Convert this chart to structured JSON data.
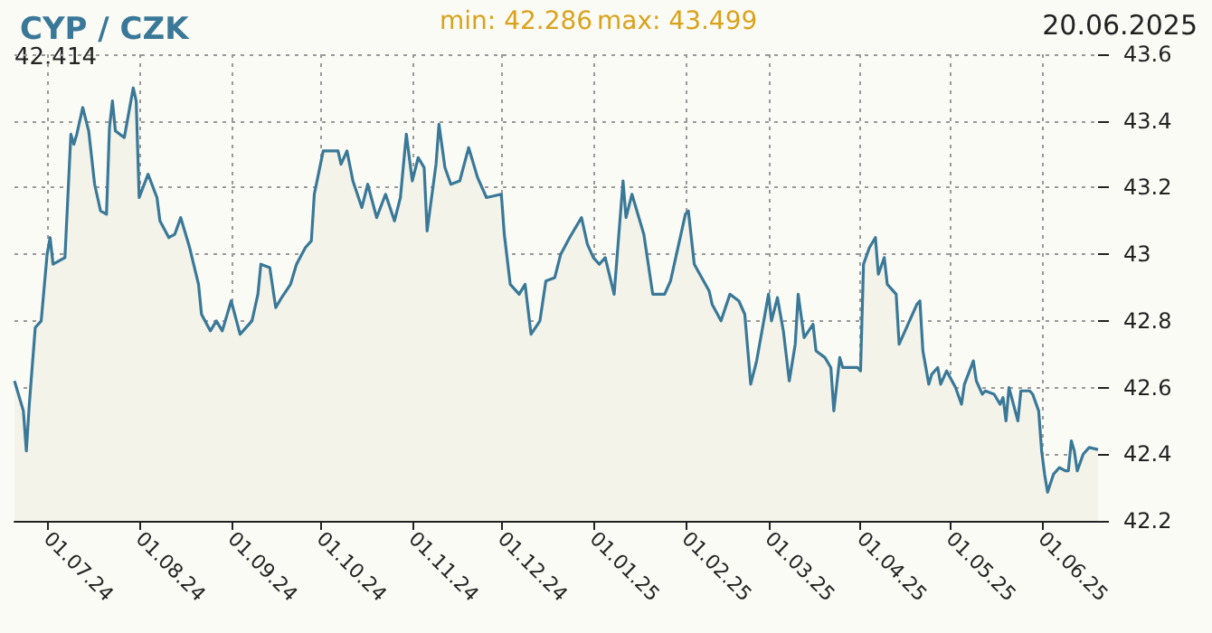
{
  "chart_data": {
    "type": "area",
    "title": "CYP / CZK",
    "annotations": [
      "min: 42.286",
      "max: 43.499",
      "20.06.2025",
      "42.414"
    ],
    "x": [
      "2024-06-20",
      "2024-06-23",
      "2024-06-24",
      "2024-06-25",
      "2024-06-27",
      "2024-06-29",
      "2024-07-01",
      "2024-07-02",
      "2024-07-03",
      "2024-07-07",
      "2024-07-09",
      "2024-07-10",
      "2024-07-11",
      "2024-07-13",
      "2024-07-15",
      "2024-07-17",
      "2024-07-19",
      "2024-07-21",
      "2024-07-22",
      "2024-07-23",
      "2024-07-24",
      "2024-07-27",
      "2024-07-30",
      "2024-07-31",
      "2024-08-01",
      "2024-08-04",
      "2024-08-07",
      "2024-08-08",
      "2024-08-11",
      "2024-08-13",
      "2024-08-15",
      "2024-08-18",
      "2024-08-21",
      "2024-08-22",
      "2024-08-25",
      "2024-08-27",
      "2024-08-29",
      "2024-09-01",
      "2024-09-04",
      "2024-09-08",
      "2024-09-10",
      "2024-09-11",
      "2024-09-14",
      "2024-09-16",
      "2024-09-18",
      "2024-09-21",
      "2024-09-23",
      "2024-09-26",
      "2024-09-28",
      "2024-09-29",
      "2024-10-02",
      "2024-10-07",
      "2024-10-08",
      "2024-10-10",
      "2024-10-12",
      "2024-10-15",
      "2024-10-17",
      "2024-10-20",
      "2024-10-23",
      "2024-10-26",
      "2024-10-28",
      "2024-10-30",
      "2024-11-01",
      "2024-11-03",
      "2024-11-05",
      "2024-11-06",
      "2024-11-09",
      "2024-11-10",
      "2024-11-12",
      "2024-11-14",
      "2024-11-17",
      "2024-11-20",
      "2024-11-23",
      "2024-11-26",
      "2024-12-01",
      "2024-12-02",
      "2024-12-04",
      "2024-12-07",
      "2024-12-09",
      "2024-12-11",
      "2024-12-14",
      "2024-12-16",
      "2024-12-19",
      "2024-12-21",
      "2024-12-24",
      "2024-12-28",
      "2024-12-30",
      "2025-01-01",
      "2025-01-03",
      "2025-01-05",
      "2025-01-08",
      "2025-01-11",
      "2025-01-12",
      "2025-01-14",
      "2025-01-18",
      "2025-01-21",
      "2025-01-25",
      "2025-01-27",
      "2025-02-01",
      "2025-02-02",
      "2025-02-04",
      "2025-02-09",
      "2025-02-10",
      "2025-02-13",
      "2025-02-16",
      "2025-02-19",
      "2025-02-21",
      "2025-02-23",
      "2025-02-25",
      "2025-02-27",
      "2025-03-01",
      "2025-03-02",
      "2025-03-04",
      "2025-03-06",
      "2025-03-08",
      "2025-03-10",
      "2025-03-11",
      "2025-03-13",
      "2025-03-16",
      "2025-03-17",
      "2025-03-20",
      "2025-03-22",
      "2025-03-23",
      "2025-03-25",
      "2025-03-26",
      "2025-03-31",
      "2025-04-01",
      "2025-04-02",
      "2025-04-04",
      "2025-04-06",
      "2025-04-07",
      "2025-04-09",
      "2025-04-10",
      "2025-04-13",
      "2025-04-14",
      "2025-04-20",
      "2025-04-21",
      "2025-04-22",
      "2025-04-24",
      "2025-04-25",
      "2025-04-27",
      "2025-04-28",
      "2025-04-30",
      "2025-05-03",
      "2025-05-05",
      "2025-05-06",
      "2025-05-09",
      "2025-05-10",
      "2025-05-12",
      "2025-05-13",
      "2025-05-16",
      "2025-05-18",
      "2025-05-19",
      "2025-05-20",
      "2025-05-21",
      "2025-05-24",
      "2025-05-25",
      "2025-05-28",
      "2025-05-29",
      "2025-05-31",
      "2025-06-01",
      "2025-06-02",
      "2025-06-03",
      "2025-06-05",
      "2025-06-07",
      "2025-06-09",
      "2025-06-10",
      "2025-06-11",
      "2025-06-12",
      "2025-06-13",
      "2025-06-15",
      "2025-06-17",
      "2025-06-20"
    ],
    "series": [
      {
        "color": "#3a7898",
        "values": [
          42.62,
          42.53,
          42.41,
          42.55,
          42.78,
          42.8,
          43.0,
          43.05,
          42.97,
          42.99,
          43.36,
          43.33,
          43.36,
          43.44,
          43.37,
          43.21,
          43.13,
          43.12,
          43.38,
          43.46,
          43.37,
          43.35,
          43.499,
          43.46,
          43.17,
          43.24,
          43.17,
          43.1,
          43.05,
          43.06,
          43.11,
          43.02,
          42.91,
          42.82,
          42.77,
          42.8,
          42.77,
          42.86,
          42.76,
          42.8,
          42.88,
          42.97,
          42.96,
          42.84,
          42.87,
          42.91,
          42.97,
          43.02,
          43.04,
          43.18,
          43.31,
          43.31,
          43.27,
          43.31,
          43.22,
          43.14,
          43.21,
          43.11,
          43.18,
          43.1,
          43.17,
          43.36,
          43.22,
          43.29,
          43.26,
          43.07,
          43.27,
          43.39,
          43.26,
          43.21,
          43.22,
          43.32,
          43.23,
          43.17,
          43.18,
          43.06,
          42.91,
          42.88,
          42.91,
          42.76,
          42.8,
          42.92,
          42.93,
          43.0,
          43.05,
          43.11,
          43.03,
          42.99,
          42.97,
          42.99,
          42.88,
          43.22,
          43.11,
          43.18,
          43.06,
          42.88,
          42.88,
          42.92,
          43.12,
          43.13,
          42.97,
          42.89,
          42.85,
          42.8,
          42.88,
          42.86,
          42.82,
          42.61,
          42.68,
          42.78,
          42.88,
          42.8,
          42.87,
          42.77,
          42.62,
          42.73,
          42.88,
          42.75,
          42.79,
          42.71,
          42.69,
          42.66,
          42.53,
          42.69,
          42.66,
          42.66,
          42.65,
          42.97,
          43.02,
          43.05,
          42.94,
          42.99,
          42.91,
          42.88,
          42.73,
          42.85,
          42.86,
          42.71,
          42.61,
          42.64,
          42.66,
          42.61,
          42.65,
          42.6,
          42.55,
          42.61,
          42.68,
          42.62,
          42.58,
          42.59,
          42.58,
          42.55,
          42.57,
          42.5,
          42.6,
          42.5,
          42.59,
          42.59,
          42.58,
          42.53,
          42.41,
          42.34,
          42.286,
          42.34,
          42.36,
          42.35,
          42.35,
          42.44,
          42.41,
          42.35,
          42.4,
          42.42,
          42.414
        ]
      }
    ],
    "xlim": [
      "2024-06-20",
      "2025-06-20"
    ],
    "xticks": [
      {
        "value": "2024-07-01",
        "label": "01.07.24"
      },
      {
        "value": "2024-08-01",
        "label": "01.08.24"
      },
      {
        "value": "2024-09-01",
        "label": "01.09.24"
      },
      {
        "value": "2024-10-01",
        "label": "01.10.24"
      },
      {
        "value": "2024-11-01",
        "label": "01.11.24"
      },
      {
        "value": "2024-12-01",
        "label": "01.12.24"
      },
      {
        "value": "2025-01-01",
        "label": "01.01.25"
      },
      {
        "value": "2025-02-01",
        "label": "01.02.25"
      },
      {
        "value": "2025-03-01",
        "label": "01.03.25"
      },
      {
        "value": "2025-04-01",
        "label": "01.04.25"
      },
      {
        "value": "2025-05-01",
        "label": "01.05.25"
      },
      {
        "value": "2025-06-01",
        "label": "01.06.25"
      }
    ],
    "ylim": [
      42.2,
      43.6
    ],
    "yticks": [
      42.2,
      42.4,
      42.6,
      42.8,
      43,
      43.2,
      43.4,
      43.6
    ],
    "grid": true,
    "marker": "none",
    "line_style": "solid"
  }
}
